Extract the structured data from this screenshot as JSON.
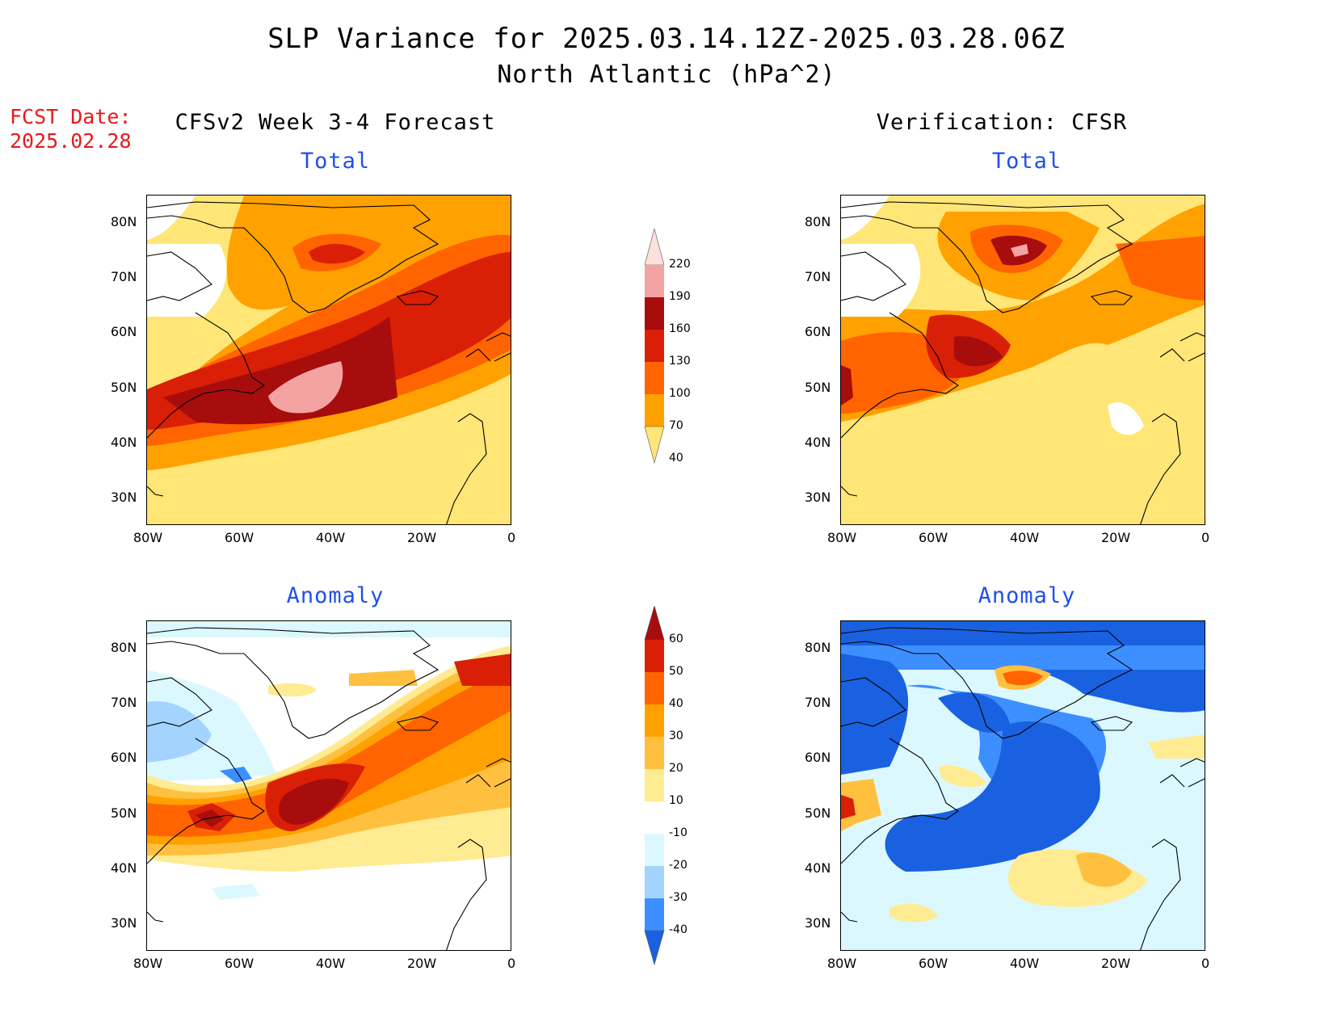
{
  "title": {
    "line1": "SLP Variance for 2025.03.14.12Z-2025.03.28.06Z",
    "line2": "North Atlantic (hPa^2)"
  },
  "forecast_date": {
    "label": "FCST Date:",
    "value": "2025.02.28"
  },
  "columns": {
    "left": "CFSv2 Week 3-4 Forecast",
    "right": "Verification: CFSR"
  },
  "panels": {
    "total_label": "Total",
    "anomaly_label": "Anomaly"
  },
  "axes": {
    "lat_labels": [
      "80N",
      "70N",
      "60N",
      "50N",
      "40N",
      "30N"
    ],
    "lat_values": [
      80,
      70,
      60,
      50,
      40,
      30
    ],
    "lon_labels": [
      "80W",
      "60W",
      "40W",
      "20W",
      "0"
    ],
    "lon_values": [
      -80,
      -60,
      -40,
      -20,
      0
    ],
    "lat_range": [
      25,
      85
    ],
    "lon_range": [
      -80,
      0
    ]
  },
  "colorbar_total": {
    "levels": [
      "220",
      "190",
      "160",
      "130",
      "100",
      "70",
      "40"
    ],
    "colors": [
      "#fde0dc",
      "#f4a3a3",
      "#a70d0d",
      "#d91f06",
      "#ff6400",
      "#ffa100",
      "#ffe676"
    ]
  },
  "colorbar_anomaly": {
    "levels": [
      "60",
      "50",
      "40",
      "30",
      "20",
      "10",
      "-10",
      "-20",
      "-30",
      "-40"
    ],
    "colors": [
      "#a70d0d",
      "#d91f06",
      "#ff6400",
      "#ffa100",
      "#ffc040",
      "#ffeb91",
      "#ffffff",
      "#dcf8ff",
      "#a3d3ff",
      "#3d8fff",
      "#1961e0"
    ]
  }
}
